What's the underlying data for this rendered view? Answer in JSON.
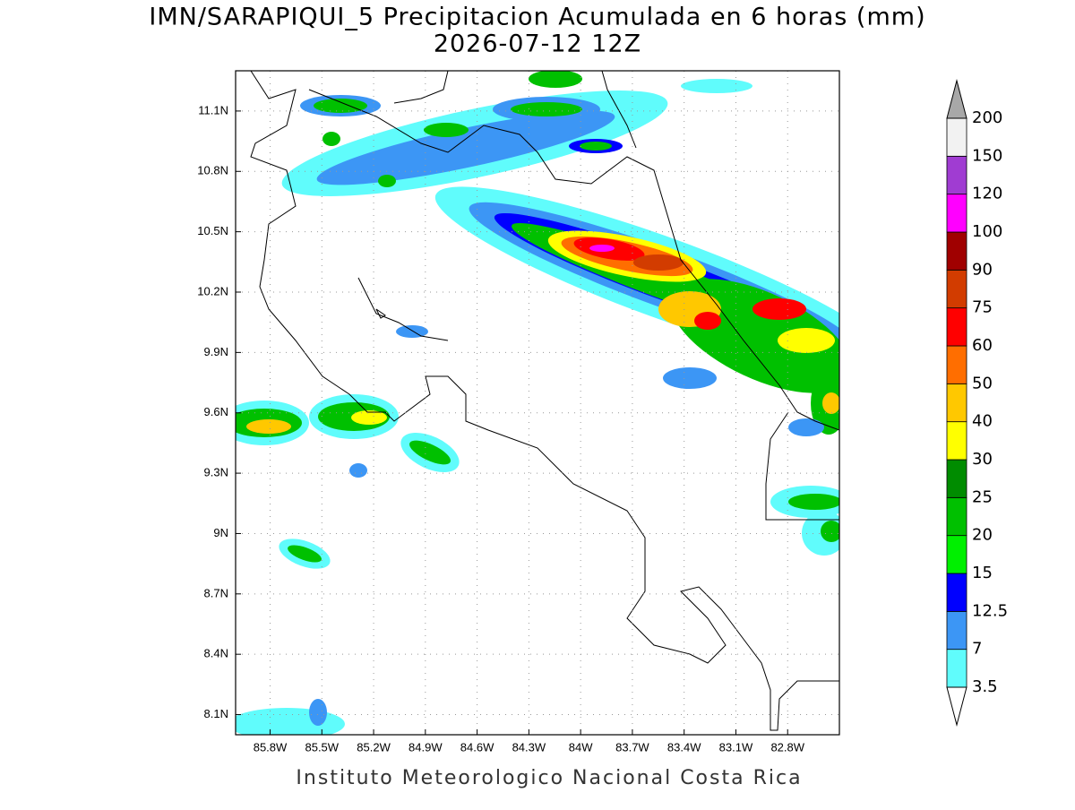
{
  "title": "IMN/SARAPIQUI_5 Precipitacion Acumulada en 6 horas (mm)",
  "subtitle": "2026-07-12 12Z",
  "footer": "Instituto Meteorologico Nacional Costa Rica",
  "map": {
    "lonlim": [
      -86.0,
      -82.5
    ],
    "latlim": [
      8.0,
      11.3
    ],
    "lon_ticks": [
      {
        "value": -85.8,
        "label": "85.8W"
      },
      {
        "value": -85.5,
        "label": "85.5W"
      },
      {
        "value": -85.2,
        "label": "85.2W"
      },
      {
        "value": -84.9,
        "label": "84.9W"
      },
      {
        "value": -84.6,
        "label": "84.6W"
      },
      {
        "value": -84.3,
        "label": "84.3W"
      },
      {
        "value": -84.0,
        "label": "84W"
      },
      {
        "value": -83.7,
        "label": "83.7W"
      },
      {
        "value": -83.4,
        "label": "83.4W"
      },
      {
        "value": -83.1,
        "label": "83.1W"
      },
      {
        "value": -82.8,
        "label": "82.8W"
      }
    ],
    "lat_ticks": [
      {
        "value": 11.1,
        "label": "11.1N"
      },
      {
        "value": 10.8,
        "label": "10.8N"
      },
      {
        "value": 10.5,
        "label": "10.5N"
      },
      {
        "value": 10.2,
        "label": "10.2N"
      },
      {
        "value": 9.9,
        "label": "9.9N"
      },
      {
        "value": 9.6,
        "label": "9.6N"
      },
      {
        "value": 9.3,
        "label": "9.3N"
      },
      {
        "value": 9.0,
        "label": "9N"
      },
      {
        "value": 8.7,
        "label": "8.7N"
      },
      {
        "value": 8.4,
        "label": "8.4N"
      },
      {
        "value": 8.1,
        "label": "8.1N"
      }
    ],
    "grid": true
  },
  "colorbar": {
    "levels": [
      3.5,
      7,
      12.5,
      15,
      20,
      25,
      30,
      40,
      50,
      60,
      75,
      90,
      100,
      120,
      150,
      200
    ],
    "colors": [
      "#60fcfc",
      "#3c96f5",
      "#0000ff",
      "#00f000",
      "#00c000",
      "#008c00",
      "#ffff00",
      "#ffc800",
      "#ff6e00",
      "#ff0000",
      "#d23c00",
      "#a00000",
      "#ff00ff",
      "#a03cd2",
      "#f2f2f2"
    ],
    "over_color": "#a8a8a8",
    "under_color": "#ffffff"
  }
}
